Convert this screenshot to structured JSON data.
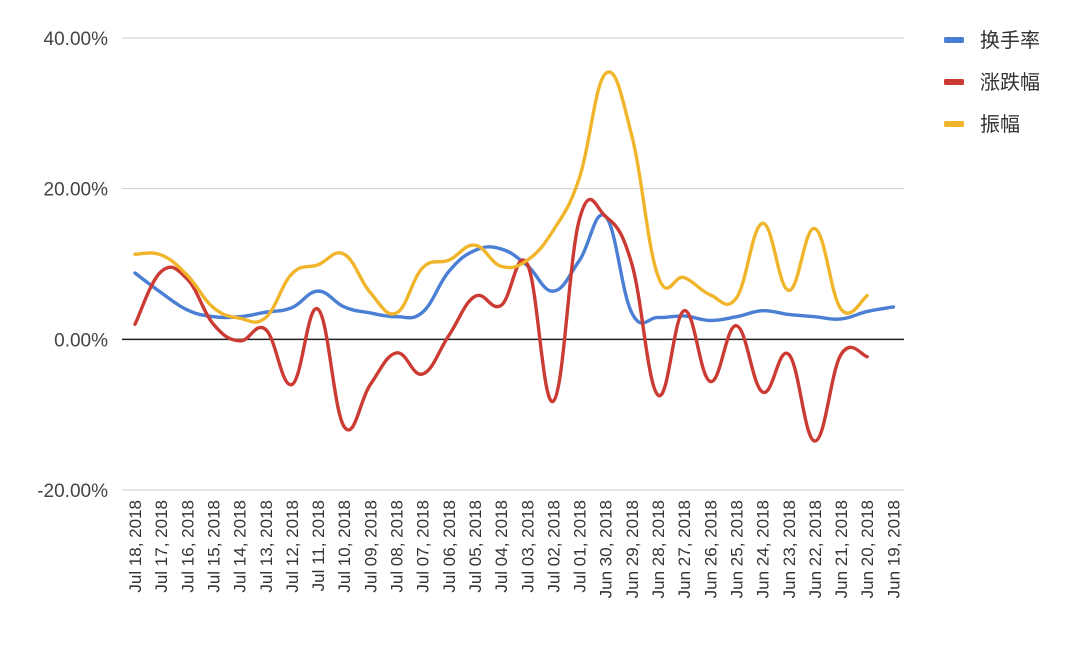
{
  "chart_data": {
    "type": "line",
    "smooth": true,
    "categories": [
      "Jul 18, 2018",
      "Jul 17, 2018",
      "Jul 16, 2018",
      "Jul 15, 2018",
      "Jul 14, 2018",
      "Jul 13, 2018",
      "Jul 12, 2018",
      "Jul 11, 2018",
      "Jul 10, 2018",
      "Jul 09, 2018",
      "Jul 08, 2018",
      "Jul 07, 2018",
      "Jul 06, 2018",
      "Jul 05, 2018",
      "Jul 04, 2018",
      "Jul 03, 2018",
      "Jul 02, 2018",
      "Jul 01, 2018",
      "Jun 30, 2018",
      "Jun 29, 2018",
      "Jun 28, 2018",
      "Jun 27, 2018",
      "Jun 26, 2018",
      "Jun 25, 2018",
      "Jun 24, 2018",
      "Jun 23, 2018",
      "Jun 22, 2018",
      "Jun 21, 2018",
      "Jun 20, 2018",
      "Jun 19, 2018"
    ],
    "series": [
      {
        "name": "换手率",
        "color": "#4a7fd4",
        "values": [
          8.8,
          6.2,
          3.9,
          3.0,
          3.0,
          3.6,
          4.2,
          6.4,
          4.3,
          3.5,
          3.0,
          3.6,
          9.0,
          11.8,
          12.0,
          9.8,
          6.4,
          10.5,
          16.3,
          3.5,
          2.9,
          3.1,
          2.5,
          3.0,
          3.8,
          3.3,
          3.0,
          2.7,
          3.7,
          4.3
        ]
      },
      {
        "name": "涨跌幅",
        "color": "#cc3b33",
        "values": [
          2.0,
          9.0,
          8.0,
          2.0,
          -0.2,
          1.3,
          -6.0,
          4.0,
          -11.6,
          -6.0,
          -1.8,
          -4.6,
          0.5,
          5.7,
          4.5,
          10.0,
          -8.2,
          16.0,
          16.3,
          10.0,
          -7.4,
          3.8,
          -5.6,
          1.8,
          -7.0,
          -2.0,
          -13.5,
          -2.0,
          -2.3,
          null
        ]
      },
      {
        "name": "振幅",
        "color": "#f0b52a",
        "values": [
          11.3,
          11.2,
          8.5,
          4.2,
          2.8,
          2.9,
          8.7,
          9.9,
          11.3,
          6.2,
          3.5,
          9.5,
          10.5,
          12.5,
          9.7,
          10.5,
          14.5,
          21.5,
          35.3,
          27.0,
          8.4,
          8.2,
          5.9,
          5.5,
          15.4,
          6.5,
          14.7,
          4.0,
          5.8,
          null
        ]
      }
    ],
    "ylim": [
      -20,
      40
    ],
    "yticks": [
      -20,
      0,
      20,
      40
    ],
    "ytick_labels": [
      "-20.00%",
      "0.00%",
      "20.00%",
      "40.00%"
    ],
    "grid": true,
    "legend_position": "right"
  }
}
